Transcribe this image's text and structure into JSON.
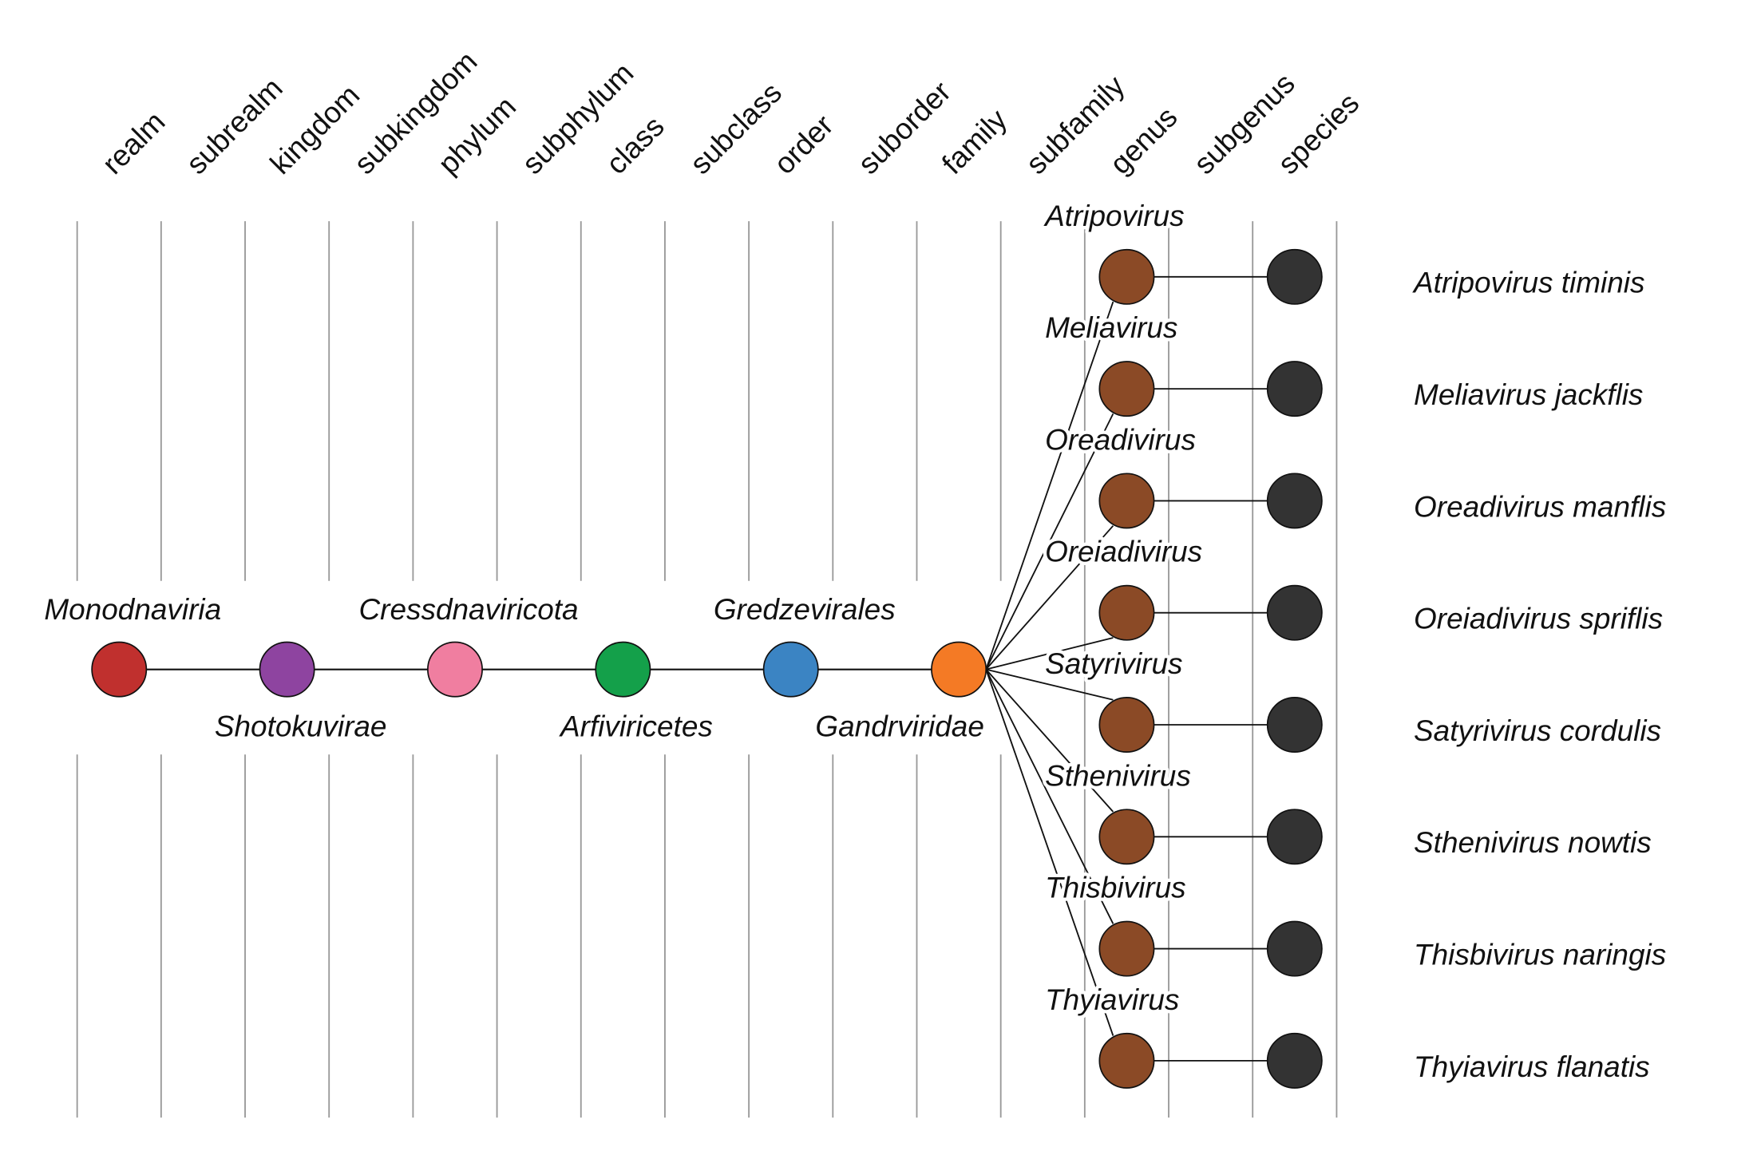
{
  "ranks": [
    "realm",
    "subrealm",
    "kingdom",
    "subkingdom",
    "phylum",
    "subphylum",
    "class",
    "subclass",
    "order",
    "suborder",
    "family",
    "subfamily",
    "genus",
    "subgenus",
    "species"
  ],
  "lineage": [
    {
      "label": "Monodnaviria",
      "color": "#c0302e"
    },
    {
      "label": "Shotokuvirae",
      "color": "#8e44a0"
    },
    {
      "label": "Cressdnaviricota",
      "color": "#f07ea0"
    },
    {
      "label": "Arfiviricetes",
      "color": "#14a04a"
    },
    {
      "label": "Gredzevirales",
      "color": "#3b84c3"
    },
    {
      "label": "Gandrviridae",
      "color": "#f47a25"
    }
  ],
  "genus_color": "#8b4a26",
  "species_color": "#333333",
  "genera": [
    {
      "label": "Atripovirus",
      "species": "Atripovirus timinis"
    },
    {
      "label": "Meliavirus",
      "species": "Meliavirus jackflis"
    },
    {
      "label": "Oreadivirus",
      "species": "Oreadivirus manflis"
    },
    {
      "label": "Oreiadivirus",
      "species": "Oreiadivirus spriflis"
    },
    {
      "label": "Satyrivirus",
      "species": "Satyrivirus cordulis"
    },
    {
      "label": "Sthenivirus",
      "species": "Sthenivirus nowtis"
    },
    {
      "label": "Thisbivirus",
      "species": "Thisbivirus naringis"
    },
    {
      "label": "Thyiavirus",
      "species": "Thyiavirus flanatis"
    }
  ]
}
